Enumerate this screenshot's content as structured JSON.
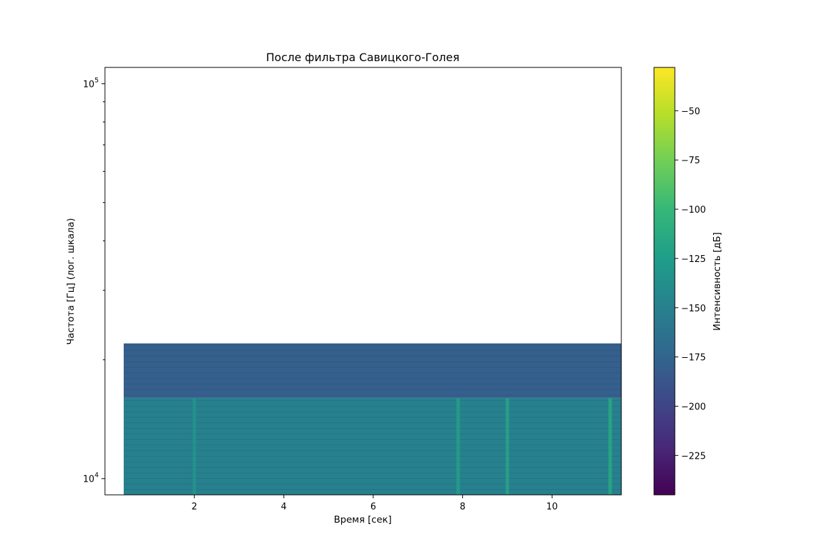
{
  "chart_data": {
    "type": "heatmap",
    "title": "После фильтра Савицкого-Голея",
    "xlabel": "Время [сек]",
    "ylabel": "Частота [Гц] (лог. шкала)",
    "xlim": [
      0,
      11.55
    ],
    "ylim": [
      9100,
      110000
    ],
    "yscale": "log",
    "x_ticks": [
      2,
      4,
      6,
      8,
      10
    ],
    "x_tick_labels": [
      "2",
      "4",
      "6",
      "8",
      "10"
    ],
    "y_ticks": [
      10000,
      100000
    ],
    "y_tick_labels": [
      {
        "base": "10",
        "exp": "4"
      },
      {
        "base": "10",
        "exp": "5"
      }
    ],
    "y_minor_ticks": [
      20000,
      30000,
      40000,
      50000,
      60000,
      70000,
      80000,
      90000
    ],
    "data_extent": {
      "x_start": 0.42,
      "x_end": 11.55,
      "f_top": 22000
    },
    "bands": [
      {
        "f_from": 16000,
        "f_to": 22000,
        "level_db": -180
      },
      {
        "f_from": 9100,
        "f_to": 16000,
        "level_db": -150
      }
    ],
    "bright_events": [
      {
        "t": 2.0,
        "level_db": -130
      },
      {
        "t": 7.9,
        "level_db": -120
      },
      {
        "t": 9.0,
        "level_db": -115
      },
      {
        "t": 11.3,
        "level_db": -110
      }
    ],
    "colorbar": {
      "label": "Интенсивность [дБ]",
      "colormap": "viridis",
      "range": [
        -245,
        -28
      ],
      "ticks": [
        -50,
        -75,
        -100,
        -125,
        -150,
        -175,
        -200,
        -225
      ],
      "tick_labels": [
        "−50",
        "−75",
        "−100",
        "−125",
        "−150",
        "−175",
        "−200",
        "−225"
      ]
    }
  }
}
